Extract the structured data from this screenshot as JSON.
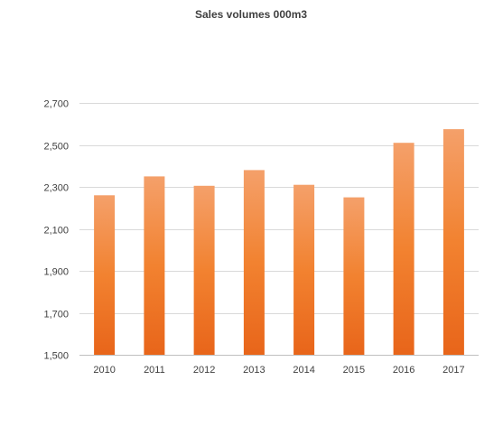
{
  "chart_data": {
    "type": "bar",
    "title": "Sales volumes 000m3",
    "xlabel": "",
    "ylabel": "",
    "categories": [
      "2010",
      "2011",
      "2012",
      "2013",
      "2014",
      "2015",
      "2016",
      "2017"
    ],
    "values": [
      2260,
      2350,
      2305,
      2380,
      2310,
      2250,
      2510,
      2575
    ],
    "ylim": [
      1500,
      2700
    ],
    "yticks": [
      1500,
      1700,
      1900,
      2100,
      2300,
      2500,
      2700
    ],
    "ytick_labels": [
      "1,500",
      "1,700",
      "1,900",
      "2,100",
      "2,300",
      "2,500",
      "2,700"
    ],
    "grid": true,
    "legend": "none",
    "colors": {
      "bar_top": "#f4a06a",
      "bar_mid": "#f28230",
      "bar_bottom": "#e8651a"
    }
  }
}
